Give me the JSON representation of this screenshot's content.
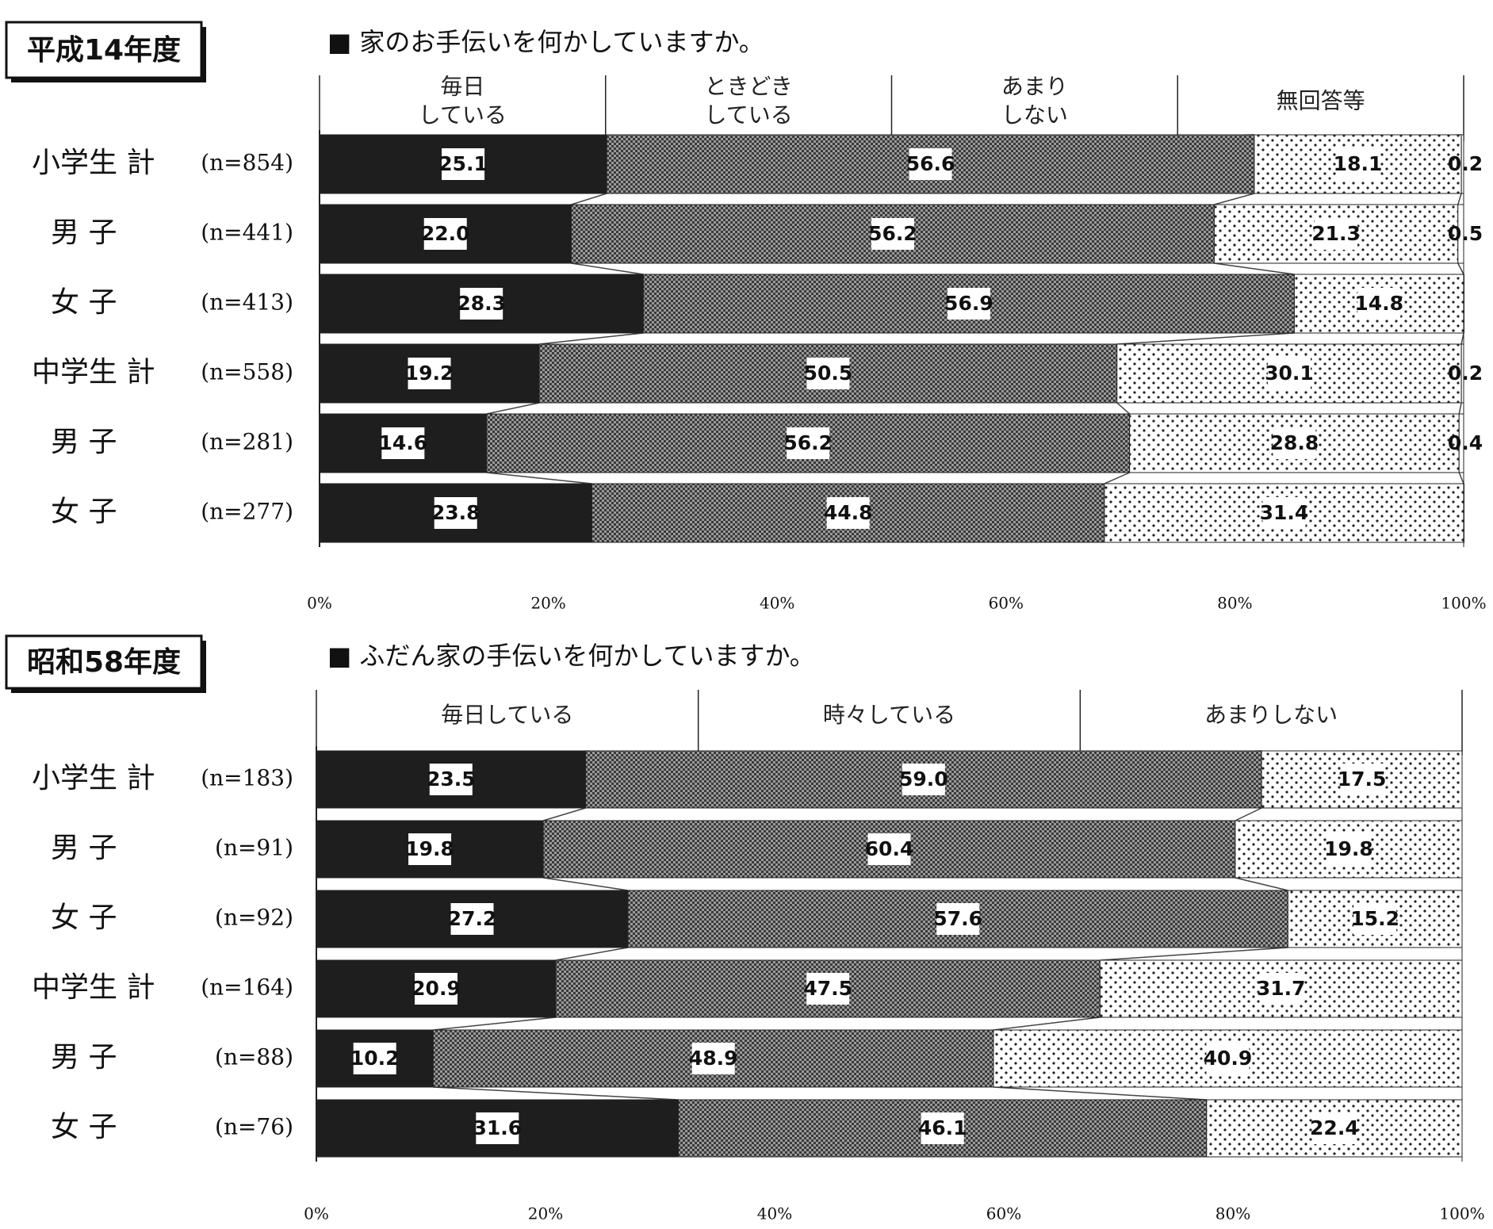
{
  "colors": {
    "daily": "#1e1e1e",
    "sometimes": "#7a7a7a",
    "rarely": "#f4f4f4",
    "no_answer": "#ffffff"
  },
  "chart_data": [
    {
      "type": "bar",
      "orientation": "horizontal",
      "stacked": true,
      "year_label": "平成14年度",
      "question": "■ 家のお手伝いを何かしていますか。",
      "categories": [
        "小学生 計",
        "男 子",
        "女 子",
        "中学生 計",
        "男 子",
        "女 子"
      ],
      "n": [
        "(n=854)",
        "(n=441)",
        "(n=413)",
        "(n=558)",
        "(n=281)",
        "(n=277)"
      ],
      "series": [
        {
          "name": "毎日\nしている",
          "values": [
            25.1,
            22.0,
            28.3,
            19.2,
            14.6,
            23.8
          ]
        },
        {
          "name": "ときどき\nしている",
          "values": [
            56.6,
            56.2,
            56.9,
            50.5,
            56.2,
            44.8
          ]
        },
        {
          "name": "あまり\nしない",
          "values": [
            18.1,
            21.3,
            14.8,
            30.1,
            28.8,
            31.4
          ]
        },
        {
          "name": "無回答等",
          "values": [
            0.2,
            0.5,
            0,
            0.2,
            0.4,
            0
          ]
        }
      ],
      "value_labels": [
        [
          "25.1",
          "56.6",
          "18.1",
          "0.2"
        ],
        [
          "22.0",
          "56.2",
          "21.3",
          "0.5"
        ],
        [
          "28.3",
          "56.9",
          "14.8",
          ""
        ],
        [
          "19.2",
          "50.5",
          "30.1",
          "0.2"
        ],
        [
          "14.6",
          "56.2",
          "28.8",
          "0.4"
        ],
        [
          "23.8",
          "44.8",
          "31.4",
          ""
        ]
      ],
      "xticks": [
        "0%",
        "20%",
        "40%",
        "60%",
        "80%",
        "100%"
      ],
      "xlim": [
        0,
        100
      ]
    },
    {
      "type": "bar",
      "orientation": "horizontal",
      "stacked": true,
      "year_label": "昭和58年度",
      "question": "■ ふだん家の手伝いを何かしていますか。",
      "categories": [
        "小学生 計",
        "男 子",
        "女 子",
        "中学生 計",
        "男 子",
        "女 子"
      ],
      "n": [
        "(n=183)",
        "(n=91)",
        "(n=92)",
        "(n=164)",
        "(n=88)",
        "(n=76)"
      ],
      "series": [
        {
          "name": "毎日している",
          "values": [
            23.5,
            19.8,
            27.2,
            20.9,
            10.2,
            31.6
          ]
        },
        {
          "name": "時々している",
          "values": [
            59.0,
            60.4,
            57.6,
            47.5,
            48.9,
            46.1
          ]
        },
        {
          "name": "あまりしない",
          "values": [
            17.5,
            19.8,
            15.2,
            31.7,
            40.9,
            22.4
          ]
        }
      ],
      "value_labels": [
        [
          "23.5",
          "59.0",
          "17.5"
        ],
        [
          "19.8",
          "60.4",
          "19.8"
        ],
        [
          "27.2",
          "57.6",
          "15.2"
        ],
        [
          "20.9",
          "47.5",
          "31.7"
        ],
        [
          "10.2",
          "48.9",
          "40.9"
        ],
        [
          "31.6",
          "46.1",
          "22.4"
        ]
      ],
      "xticks": [
        "0%",
        "20%",
        "40%",
        "60%",
        "80%",
        "100%"
      ],
      "xlim": [
        0,
        100
      ]
    }
  ]
}
